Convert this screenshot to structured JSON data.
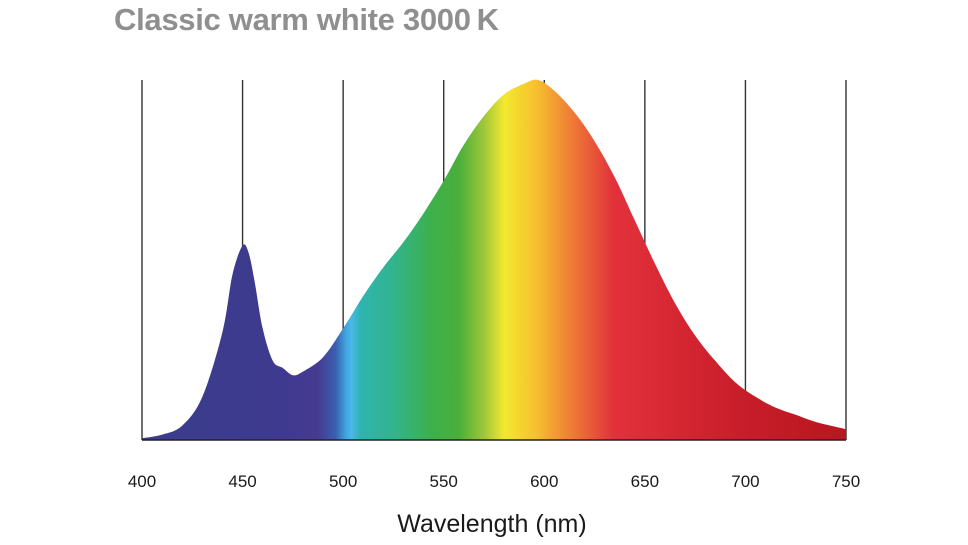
{
  "chart_data": {
    "type": "area",
    "title": "Classic warm white 3000 K",
    "xlabel": "Wavelength (nm)",
    "ylabel": "",
    "xlim": [
      400,
      750
    ],
    "ylim": [
      0,
      1
    ],
    "xticks": [
      400,
      450,
      500,
      550,
      600,
      650,
      700,
      750
    ],
    "grid": "vertical",
    "y_tick_labels_shown": false,
    "fill": "visible-spectrum gradient",
    "series": [
      {
        "x": [
          400,
          410,
          420,
          430,
          440,
          445,
          450,
          453,
          456,
          460,
          465,
          470,
          475,
          480,
          490,
          500,
          510,
          520,
          530,
          540,
          550,
          560,
          570,
          580,
          590,
          597,
          605,
          615,
          625,
          635,
          645,
          655,
          665,
          675,
          685,
          695,
          705,
          715,
          725,
          735,
          750
        ],
        "y": [
          0.005,
          0.015,
          0.04,
          0.12,
          0.3,
          0.46,
          0.54,
          0.52,
          0.44,
          0.31,
          0.22,
          0.2,
          0.18,
          0.19,
          0.23,
          0.31,
          0.4,
          0.48,
          0.55,
          0.63,
          0.72,
          0.82,
          0.9,
          0.96,
          0.99,
          1.0,
          0.97,
          0.91,
          0.83,
          0.73,
          0.61,
          0.49,
          0.38,
          0.29,
          0.22,
          0.16,
          0.12,
          0.09,
          0.07,
          0.05,
          0.03
        ]
      }
    ]
  }
}
